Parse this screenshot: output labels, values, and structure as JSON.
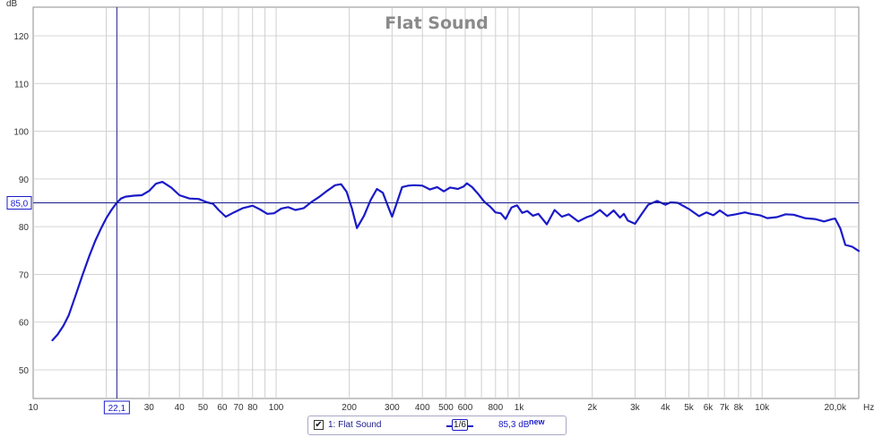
{
  "chart_data": {
    "type": "line",
    "title": "Flat Sound",
    "xlabel": "Hz",
    "ylabel": "dB",
    "x_scale": "log",
    "xlim": [
      10,
      25000
    ],
    "ylim": [
      44,
      126
    ],
    "grid": true,
    "x_ticks": [
      {
        "value": 10,
        "label": "10"
      },
      {
        "value": 30,
        "label": "30"
      },
      {
        "value": 40,
        "label": "40"
      },
      {
        "value": 50,
        "label": "50"
      },
      {
        "value": 60,
        "label": "60"
      },
      {
        "value": 70,
        "label": "70"
      },
      {
        "value": 80,
        "label": "80"
      },
      {
        "value": 100,
        "label": "100"
      },
      {
        "value": 200,
        "label": "200"
      },
      {
        "value": 300,
        "label": "300"
      },
      {
        "value": 400,
        "label": "400"
      },
      {
        "value": 500,
        "label": "500"
      },
      {
        "value": 600,
        "label": "600"
      },
      {
        "value": 800,
        "label": "800"
      },
      {
        "value": 1000,
        "label": "1k"
      },
      {
        "value": 2000,
        "label": "2k"
      },
      {
        "value": 3000,
        "label": "3k"
      },
      {
        "value": 4000,
        "label": "4k"
      },
      {
        "value": 5000,
        "label": "5k"
      },
      {
        "value": 6000,
        "label": "6k"
      },
      {
        "value": 7000,
        "label": "7k"
      },
      {
        "value": 8000,
        "label": "8k"
      },
      {
        "value": 10000,
        "label": "10k"
      },
      {
        "value": 20000,
        "label": "20,0k"
      }
    ],
    "y_ticks": [
      50,
      60,
      70,
      80,
      90,
      100,
      110,
      120
    ],
    "minor_x_grid": [
      20,
      90,
      700,
      900,
      9000
    ],
    "cursor": {
      "x": 22.1,
      "y": 85.0,
      "x_label": "22,1",
      "y_label": "85,0"
    },
    "series": [
      {
        "name": "1: Flat Sound",
        "color": "#1a1ac8",
        "smoothing": "1/6",
        "x": [
          12,
          12.6,
          13.3,
          14,
          15,
          16,
          17,
          18,
          19,
          20,
          21,
          22,
          23,
          24,
          26,
          28,
          30,
          32,
          34,
          37,
          40,
          44,
          48,
          52,
          55,
          58,
          62,
          67,
          73,
          80,
          86,
          92,
          98,
          105,
          112,
          120,
          130,
          140,
          150,
          160,
          175,
          185,
          195,
          205,
          215,
          230,
          245,
          260,
          275,
          290,
          300,
          315,
          330,
          350,
          370,
          400,
          430,
          460,
          490,
          520,
          560,
          590,
          610,
          640,
          680,
          720,
          760,
          800,
          840,
          880,
          930,
          980,
          1030,
          1080,
          1140,
          1200,
          1300,
          1400,
          1500,
          1600,
          1750,
          1900,
          2000,
          2150,
          2300,
          2450,
          2600,
          2700,
          2800,
          3000,
          3200,
          3400,
          3700,
          4000,
          4200,
          4500,
          5000,
          5500,
          5900,
          6300,
          6700,
          7200,
          7800,
          8500,
          9000,
          9800,
          10500,
          11500,
          12500,
          13500,
          15000,
          16500,
          18000,
          19500,
          20000,
          21000,
          22000,
          23500,
          25000
        ],
        "y": [
          56.2,
          57.4,
          59.2,
          61.4,
          65.8,
          70.0,
          73.8,
          77.0,
          79.6,
          81.8,
          83.5,
          84.9,
          85.9,
          86.3,
          86.5,
          86.6,
          87.5,
          89.0,
          89.4,
          88.2,
          86.6,
          85.9,
          85.8,
          85.1,
          84.8,
          83.5,
          82.1,
          83.0,
          83.9,
          84.4,
          83.6,
          82.7,
          82.8,
          83.8,
          84.1,
          83.5,
          83.9,
          85.2,
          86.2,
          87.3,
          88.7,
          88.9,
          87.3,
          83.9,
          79.7,
          82.3,
          85.6,
          87.9,
          87.1,
          84.0,
          82.1,
          85.2,
          88.3,
          88.6,
          88.7,
          88.6,
          87.8,
          88.3,
          87.4,
          88.2,
          87.9,
          88.4,
          89.1,
          88.3,
          86.8,
          85.2,
          84.2,
          83.0,
          82.8,
          81.6,
          84.0,
          84.5,
          82.9,
          83.3,
          82.3,
          82.7,
          80.5,
          83.5,
          82.1,
          82.6,
          81.1,
          82.0,
          82.4,
          83.5,
          82.2,
          83.4,
          81.9,
          82.7,
          81.3,
          80.6,
          82.7,
          84.6,
          85.4,
          84.6,
          85.1,
          85.0,
          83.7,
          82.2,
          83.0,
          82.4,
          83.4,
          82.3,
          82.6,
          83.0,
          82.7,
          82.4,
          81.8,
          82.0,
          82.6,
          82.5,
          81.8,
          81.6,
          81.1,
          81.6,
          81.7,
          79.6,
          76.2,
          75.8,
          74.9
        ]
      }
    ]
  },
  "legend": {
    "checkbox_mark": "✔",
    "series_label": "1: Flat Sound",
    "smoothing": "1/6",
    "value": "85,3 dB",
    "new_label": "new"
  }
}
